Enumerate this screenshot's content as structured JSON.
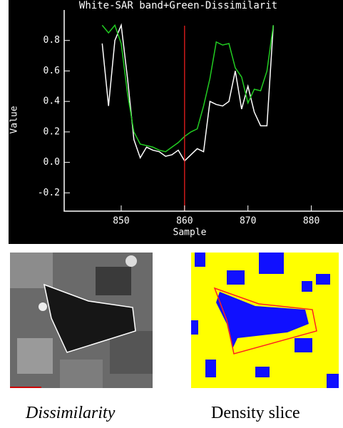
{
  "chart_data": {
    "type": "line",
    "title": "White-SAR band+Green-Dissimilarit",
    "x_label": "Sample",
    "y_label": "Value",
    "x": [
      847,
      848,
      849,
      850,
      851,
      852,
      853,
      854,
      855,
      856,
      857,
      858,
      859,
      860,
      861,
      862,
      863,
      864,
      865,
      866,
      867,
      868,
      869,
      870,
      871,
      872,
      873,
      874
    ],
    "series": [
      {
        "name": "White",
        "color": "#ffffff",
        "values": [
          0.78,
          0.37,
          0.8,
          0.9,
          0.55,
          0.15,
          0.03,
          0.1,
          0.08,
          0.07,
          0.04,
          0.05,
          0.08,
          0.01,
          0.05,
          0.09,
          0.07,
          0.4,
          0.38,
          0.37,
          0.4,
          0.6,
          0.35,
          0.5,
          0.33,
          0.24,
          0.24,
          0.9
        ]
      },
      {
        "name": "Green",
        "color": "#22cc22",
        "values": [
          0.9,
          0.85,
          0.9,
          0.78,
          0.45,
          0.2,
          0.12,
          0.11,
          0.1,
          0.08,
          0.07,
          0.1,
          0.13,
          0.17,
          0.2,
          0.22,
          0.37,
          0.55,
          0.79,
          0.77,
          0.78,
          0.62,
          0.56,
          0.39,
          0.48,
          0.47,
          0.6,
          0.9
        ]
      }
    ],
    "marker_x": 860,
    "marker_color": "#ff2020",
    "xlim": [
      841,
      885
    ],
    "xticks": [
      850,
      860,
      870,
      880
    ],
    "ylim": [
      -0.32,
      1.0
    ],
    "yticks": [
      -0.2,
      {
        "value": 0,
        "label": "0.0"
      },
      0.2,
      0.4,
      0.6,
      0.8
    ]
  },
  "captions": {
    "left": "Dissimilarity",
    "right": "Density slice"
  }
}
